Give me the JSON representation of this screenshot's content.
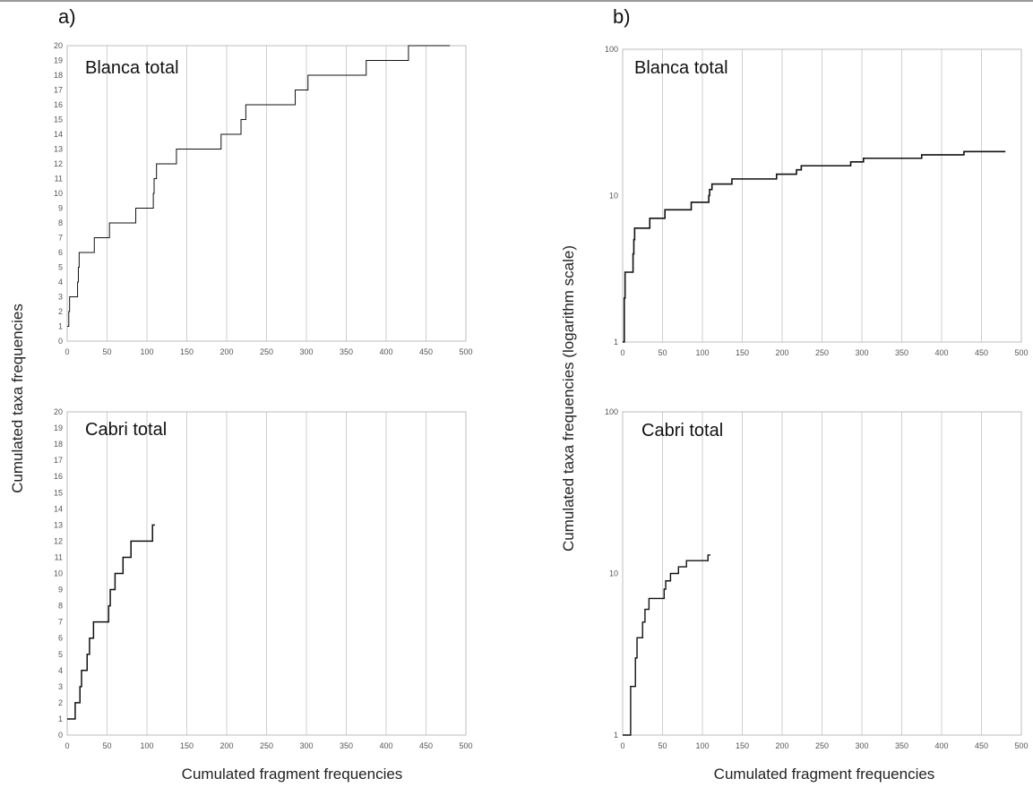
{
  "panel_labels": {
    "a": "a)",
    "b": "b)"
  },
  "axis_titles": {
    "a_ylabel": "Cumulated taxa frequencies",
    "a_xlabel": "Cumulated fragment frequencies",
    "b_ylabel": "Cumulated taxa frequencies (logarithm scale)",
    "b_xlabel": "Cumulated fragment frequencies"
  },
  "chart_data": [
    {
      "type": "line",
      "step": true,
      "scale": "linear",
      "title": "Blanca total",
      "xlim": [
        0,
        500
      ],
      "ylim": [
        0,
        20
      ],
      "x_ticks": [
        "0",
        "50",
        "100",
        "150",
        "200",
        "250",
        "300",
        "350",
        "400",
        "450",
        "500"
      ],
      "y_ticks": [
        "0",
        "1",
        "2",
        "3",
        "4",
        "5",
        "6",
        "7",
        "8",
        "9",
        "10",
        "11",
        "12",
        "13",
        "14",
        "15",
        "16",
        "17",
        "18",
        "19",
        "20"
      ],
      "grid": "vertical",
      "series": [
        {
          "x": [
            0,
            2,
            3,
            4,
            5,
            13,
            14,
            15,
            17,
            34,
            36,
            53,
            56,
            86,
            87,
            108,
            109,
            110,
            112,
            116,
            118,
            137,
            139,
            193,
            195,
            218,
            221,
            224,
            227,
            286,
            288,
            302,
            304,
            375,
            377,
            428,
            430,
            480
          ],
          "y": [
            1,
            2,
            3,
            3,
            3,
            4,
            5,
            6,
            6,
            7,
            7,
            8,
            8,
            9,
            9,
            10,
            11,
            11,
            12,
            12,
            12,
            13,
            13,
            14,
            14,
            15,
            15,
            16,
            16,
            17,
            17,
            18,
            18,
            19,
            19,
            20,
            20,
            20
          ]
        }
      ]
    },
    {
      "type": "line",
      "step": true,
      "scale": "linear",
      "title": "Cabri total",
      "xlim": [
        0,
        500
      ],
      "ylim": [
        0,
        20
      ],
      "x_ticks": [
        "0",
        "50",
        "100",
        "150",
        "200",
        "250",
        "300",
        "350",
        "400",
        "450",
        "500"
      ],
      "y_ticks": [
        "0",
        "1",
        "2",
        "3",
        "4",
        "5",
        "6",
        "7",
        "8",
        "9",
        "10",
        "11",
        "12",
        "13",
        "14",
        "15",
        "16",
        "17",
        "18",
        "19",
        "20"
      ],
      "grid": "vertical",
      "series": [
        {
          "x": [
            0,
            8,
            10,
            16,
            18,
            23,
            25,
            28,
            30,
            33,
            35,
            52,
            54,
            60,
            63,
            70,
            72,
            80,
            82,
            105,
            107,
            110
          ],
          "y": [
            1,
            1,
            2,
            3,
            4,
            4,
            5,
            6,
            6,
            7,
            7,
            8,
            9,
            10,
            10,
            11,
            11,
            12,
            12,
            12,
            13,
            13
          ]
        }
      ]
    },
    {
      "type": "line",
      "step": true,
      "scale": "log",
      "title": "Blanca total",
      "xlim": [
        0,
        500
      ],
      "ylim": [
        1,
        100
      ],
      "x_ticks": [
        "0",
        "50",
        "100",
        "150",
        "200",
        "250",
        "300",
        "350",
        "400",
        "450",
        "500"
      ],
      "y_ticks": [
        "1",
        "10",
        "100"
      ],
      "grid": "vertical",
      "series": [
        {
          "x": [
            0,
            2,
            3,
            4,
            5,
            13,
            14,
            15,
            17,
            34,
            36,
            53,
            56,
            86,
            87,
            108,
            109,
            110,
            112,
            116,
            118,
            137,
            139,
            193,
            195,
            218,
            221,
            224,
            227,
            286,
            288,
            302,
            304,
            375,
            377,
            428,
            430,
            480
          ],
          "y": [
            1,
            2,
            3,
            3,
            3,
            4,
            5,
            6,
            6,
            7,
            7,
            8,
            8,
            9,
            9,
            10,
            11,
            11,
            12,
            12,
            12,
            13,
            13,
            14,
            14,
            15,
            15,
            16,
            16,
            17,
            17,
            18,
            18,
            19,
            19,
            20,
            20,
            20
          ]
        }
      ]
    },
    {
      "type": "line",
      "step": true,
      "scale": "log",
      "title": "Cabri total",
      "xlim": [
        0,
        500
      ],
      "ylim": [
        1,
        100
      ],
      "x_ticks": [
        "0",
        "50",
        "100",
        "150",
        "200",
        "250",
        "300",
        "350",
        "400",
        "450",
        "500"
      ],
      "y_ticks": [
        "1",
        "10",
        "100"
      ],
      "grid": "vertical",
      "series": [
        {
          "x": [
            0,
            8,
            10,
            16,
            18,
            23,
            25,
            28,
            30,
            33,
            35,
            52,
            54,
            60,
            63,
            70,
            72,
            80,
            82,
            105,
            107,
            110
          ],
          "y": [
            1,
            1,
            2,
            3,
            4,
            4,
            5,
            6,
            6,
            7,
            7,
            8,
            9,
            10,
            10,
            11,
            11,
            12,
            12,
            12,
            13,
            13
          ]
        }
      ]
    }
  ]
}
